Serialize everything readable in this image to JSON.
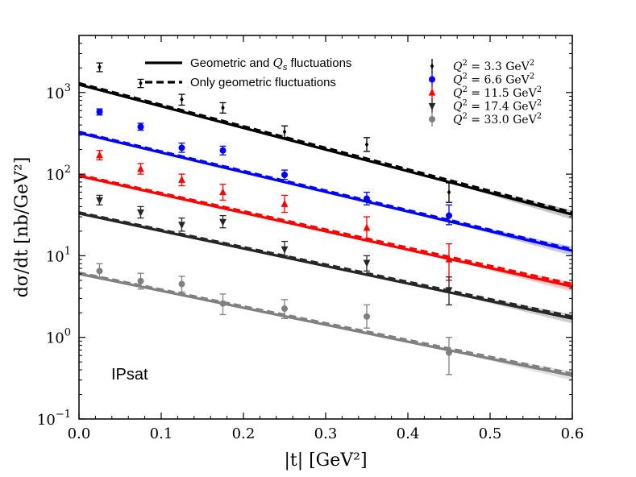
{
  "chart_data": {
    "type": "scatter",
    "title": "",
    "xlabel": "|t| [GeV²]",
    "ylabel": "dσ/dt [nb/GeV²]",
    "xlim": [
      0.0,
      0.6
    ],
    "ylim": [
      0.1,
      5000
    ],
    "yscale": "log",
    "x_ticks": [
      {
        "value": 0.0,
        "label": "0.0"
      },
      {
        "value": 0.1,
        "label": "0.1"
      },
      {
        "value": 0.2,
        "label": "0.2"
      },
      {
        "value": 0.3,
        "label": "0.3"
      },
      {
        "value": 0.4,
        "label": "0.4"
      },
      {
        "value": 0.5,
        "label": "0.5"
      },
      {
        "value": 0.6,
        "label": "0.6"
      }
    ],
    "y_ticks": [
      {
        "value": 0.1,
        "base": "10",
        "exp": "−1"
      },
      {
        "value": 1,
        "base": "10",
        "exp": "0"
      },
      {
        "value": 10,
        "base": "10",
        "exp": "1"
      },
      {
        "value": 100,
        "base": "10",
        "exp": "2"
      },
      {
        "value": 1000,
        "base": "10",
        "exp": "3"
      }
    ],
    "annotation": "IPsat",
    "line_legend": [
      {
        "label_pre": "Geometric and ",
        "label_math": "Q",
        "label_sub": "s",
        "label_post": " fluctuations",
        "style": "solid"
      },
      {
        "label_pre": "Only geometric fluctuations",
        "label_math": "",
        "label_sub": "",
        "label_post": "",
        "style": "dashed"
      }
    ],
    "series": [
      {
        "name": "Q² = 3.3 GeV²",
        "q2": "3.3",
        "color": "#000000",
        "marker": "diamond",
        "x": [
          0.025,
          0.075,
          0.125,
          0.175,
          0.25,
          0.35,
          0.45
        ],
        "y": [
          2050,
          1300,
          820,
          650,
          330,
          230,
          60
        ],
        "err": [
          [
            1800,
            2300
          ],
          [
            1150,
            1450
          ],
          [
            700,
            950
          ],
          [
            560,
            750
          ],
          [
            280,
            390
          ],
          [
            190,
            280
          ],
          [
            45,
            78
          ]
        ],
        "fit_solid": [
          1250,
          32
        ],
        "fit_dashed": [
          1300,
          34
        ]
      },
      {
        "name": "Q² = 6.6 GeV²",
        "q2": "6.6",
        "color": "#0000ff",
        "marker": "circle",
        "x": [
          0.025,
          0.075,
          0.125,
          0.175,
          0.25,
          0.35,
          0.45
        ],
        "y": [
          580,
          380,
          210,
          195,
          98,
          50,
          31
        ],
        "err": [
          [
            530,
            630
          ],
          [
            345,
            420
          ],
          [
            185,
            240
          ],
          [
            172,
            220
          ],
          [
            86,
            112
          ],
          [
            42,
            60
          ],
          [
            24,
            42
          ]
        ],
        "fit_solid": [
          320,
          11.5
        ],
        "fit_dashed": [
          330,
          12
        ]
      },
      {
        "name": "Q² = 11.5 GeV²",
        "q2": "11.5",
        "color": "#ff0000",
        "marker": "triangle",
        "x": [
          0.025,
          0.075,
          0.125,
          0.175,
          0.25,
          0.35,
          0.45
        ],
        "y": [
          170,
          115,
          85,
          60,
          43,
          22,
          9
        ],
        "err": [
          [
            150,
            195
          ],
          [
            100,
            135
          ],
          [
            72,
            100
          ],
          [
            48,
            75
          ],
          [
            34,
            55
          ],
          [
            16,
            30
          ],
          [
            5,
            14
          ]
        ],
        "fit_solid": [
          95,
          4.2
        ],
        "fit_dashed": [
          98,
          4.5
        ]
      },
      {
        "name": "Q² = 17.4 GeV²",
        "q2": "17.4",
        "color": "#262626",
        "marker": "tri-down",
        "x": [
          0.025,
          0.075,
          0.125,
          0.175,
          0.25,
          0.35,
          0.45
        ],
        "y": [
          48,
          34,
          24,
          26,
          12,
          8.2,
          3.8
        ],
        "err": [
          [
            42,
            55
          ],
          [
            29,
            40
          ],
          [
            20,
            29
          ],
          [
            22,
            31
          ],
          [
            10,
            15
          ],
          [
            6.5,
            10
          ],
          [
            2.5,
            5.5
          ]
        ],
        "fit_solid": [
          33,
          1.7
        ],
        "fit_dashed": [
          34,
          1.8
        ]
      },
      {
        "name": "Q² = 33.0 GeV²",
        "q2": "33.0",
        "color": "#808080",
        "marker": "circle",
        "x": [
          0.025,
          0.075,
          0.125,
          0.175,
          0.25,
          0.35,
          0.45
        ],
        "y": [
          6.5,
          4.9,
          4.5,
          2.6,
          2.25,
          1.8,
          0.65
        ],
        "err": [
          [
            5.3,
            8.0
          ],
          [
            3.9,
            6.1
          ],
          [
            3.6,
            5.6
          ],
          [
            1.9,
            3.4
          ],
          [
            1.7,
            2.9
          ],
          [
            1.3,
            2.5
          ],
          [
            0.35,
            1.0
          ]
        ],
        "fit_solid": [
          6.0,
          0.34
        ],
        "fit_dashed": [
          6.2,
          0.36
        ]
      }
    ]
  }
}
